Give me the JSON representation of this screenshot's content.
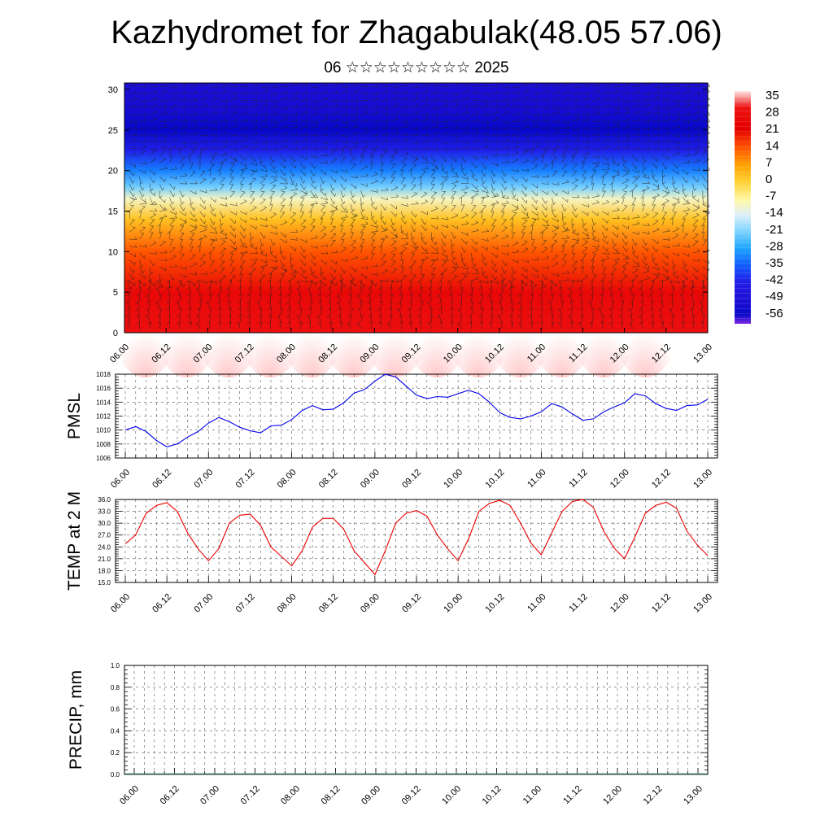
{
  "header": {
    "title": "Kazhydromet for Zhagabulak(48.05 57.06)",
    "subtitle": "06 ☆☆☆☆☆☆☆☆☆ 2025"
  },
  "chart_data": [
    {
      "type": "heatmap",
      "title": "",
      "xlabel": "",
      "ylabel": "",
      "x_ticks": [
        "06.00",
        "06.12",
        "07.00",
        "07.12",
        "08.00",
        "08.12",
        "09.00",
        "09.12",
        "10.00",
        "10.12",
        "11.00",
        "11.12",
        "12.00",
        "12.12",
        "13.00"
      ],
      "y_ticks": [
        0,
        5,
        10,
        15,
        20,
        25,
        30
      ],
      "ylim": [
        0,
        30.8
      ],
      "colorbar_labels": [
        35,
        28,
        21,
        14,
        7,
        0,
        -7,
        -14,
        -21,
        -28,
        -35,
        -42,
        -49,
        -56
      ],
      "temperature_by_level": [
        {
          "level": 0,
          "value": 30
        },
        {
          "level": 5,
          "value": 26
        },
        {
          "level": 10,
          "value": 14
        },
        {
          "level": 14,
          "value": 2
        },
        {
          "level": 16.5,
          "value": -10
        },
        {
          "level": 18,
          "value": -22
        },
        {
          "level": 20,
          "value": -32
        },
        {
          "level": 22.5,
          "value": -43
        },
        {
          "level": 25,
          "value": -56
        },
        {
          "level": 27.5,
          "value": -52
        },
        {
          "level": 30.8,
          "value": -50
        }
      ],
      "overlay": "wind barbs"
    },
    {
      "type": "line",
      "ylabel": "PMSL",
      "ylim": [
        1006,
        1018
      ],
      "y_ticks": [
        1006,
        1008,
        1010,
        1012,
        1014,
        1016,
        1018
      ],
      "x_ticks": [
        "06.00",
        "06.12",
        "07.00",
        "07.12",
        "08.00",
        "08.12",
        "09.00",
        "09.12",
        "10.00",
        "10.12",
        "11.00",
        "11.12",
        "12.00",
        "12.12",
        "13.00"
      ],
      "color": "#0000ee",
      "values": [
        1010.0,
        1010.5,
        1009.8,
        1008.5,
        1007.6,
        1008.0,
        1009.0,
        1009.8,
        1011.0,
        1011.8,
        1011.2,
        1010.4,
        1009.9,
        1009.6,
        1010.6,
        1010.7,
        1011.5,
        1012.8,
        1013.5,
        1012.9,
        1013.0,
        1013.9,
        1015.3,
        1015.8,
        1017.0,
        1018.0,
        1017.6,
        1016.3,
        1015.0,
        1014.5,
        1014.8,
        1014.7,
        1015.2,
        1015.7,
        1015.2,
        1014.0,
        1012.5,
        1011.8,
        1011.6,
        1012.0,
        1012.6,
        1013.8,
        1013.3,
        1012.3,
        1011.4,
        1011.6,
        1012.6,
        1013.3,
        1013.9,
        1015.2,
        1014.9,
        1013.8,
        1013.1,
        1012.8,
        1013.5,
        1013.6,
        1014.4
      ]
    },
    {
      "type": "line",
      "ylabel": "TEMP at 2 M",
      "ylim": [
        15,
        36
      ],
      "y_ticks": [
        "15.0",
        "18.0",
        "21.0",
        "24.0",
        "27.0",
        "30.0",
        "33.0",
        "36.0"
      ],
      "x_ticks": [
        "06.00",
        "06.12",
        "07.00",
        "07.12",
        "08.00",
        "08.12",
        "09.00",
        "09.12",
        "10.00",
        "10.12",
        "11.00",
        "11.12",
        "12.00",
        "12.12",
        "13.00"
      ],
      "color": "#ee0000",
      "values": [
        24.8,
        27.0,
        32.5,
        34.5,
        35.2,
        33.0,
        27.5,
        23.5,
        20.5,
        23.6,
        30.0,
        32.0,
        32.3,
        29.5,
        24.0,
        21.6,
        19.2,
        23.0,
        29.0,
        31.2,
        31.2,
        28.5,
        23.0,
        20.0,
        17.0,
        23.0,
        30.0,
        32.5,
        33.2,
        31.8,
        27.0,
        23.5,
        20.5,
        26.0,
        33.0,
        35.0,
        35.8,
        34.5,
        30.0,
        25.0,
        22.0,
        27.5,
        33.0,
        35.5,
        36.0,
        34.0,
        28.0,
        23.7,
        21.0,
        26.5,
        32.5,
        34.5,
        35.3,
        33.8,
        28.0,
        24.5,
        21.8
      ]
    },
    {
      "type": "bar",
      "ylabel": "PRECIP, mm",
      "ylim": [
        0,
        1
      ],
      "y_ticks": [
        "0.0",
        "0.2",
        "0.4",
        "0.6",
        "0.8",
        "1.0"
      ],
      "x_ticks": [
        "06.00",
        "06.12",
        "07.00",
        "07.12",
        "08.00",
        "08.12",
        "09.00",
        "09.12",
        "10.00",
        "10.12",
        "11.00",
        "11.12",
        "12.00",
        "12.12",
        "13.00"
      ],
      "values": [
        0,
        0,
        0,
        0,
        0,
        0,
        0,
        0,
        0,
        0,
        0,
        0,
        0,
        0,
        0,
        0,
        0,
        0,
        0,
        0,
        0,
        0,
        0,
        0,
        0,
        0,
        0,
        0,
        0,
        0,
        0,
        0,
        0,
        0,
        0,
        0,
        0,
        0,
        0,
        0,
        0,
        0,
        0,
        0,
        0,
        0,
        0,
        0,
        0,
        0,
        0,
        0,
        0,
        0,
        0,
        0,
        0
      ]
    }
  ],
  "palette": {
    "stops": [
      {
        "value": 38,
        "color": "#ffe6e6"
      },
      {
        "value": 31,
        "color": "#ee1111"
      },
      {
        "value": 22,
        "color": "#e40000"
      },
      {
        "value": 14,
        "color": "#ff5500"
      },
      {
        "value": 7,
        "color": "#ffa000"
      },
      {
        "value": 0,
        "color": "#ffd030"
      },
      {
        "value": -8,
        "color": "#fff8a8"
      },
      {
        "value": -14,
        "color": "#dff0f8"
      },
      {
        "value": -21,
        "color": "#80d4ff"
      },
      {
        "value": -28,
        "color": "#20a8ff"
      },
      {
        "value": -35,
        "color": "#1060ff"
      },
      {
        "value": -42,
        "color": "#2020e8"
      },
      {
        "value": -49,
        "color": "#2010d8"
      },
      {
        "value": -56,
        "color": "#0808c8"
      },
      {
        "value": -60,
        "color": "#7a28e6"
      }
    ]
  }
}
